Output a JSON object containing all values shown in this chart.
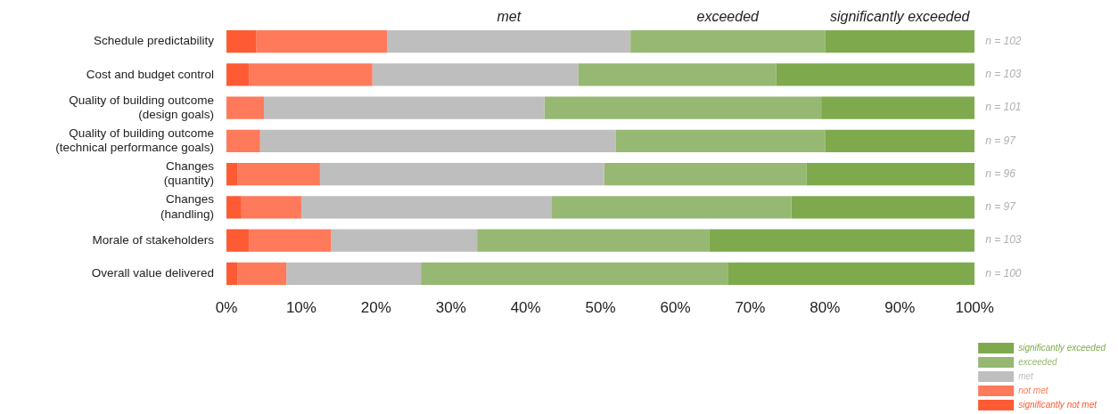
{
  "chart_data": {
    "type": "bar",
    "orientation": "horizontal",
    "stacked": true,
    "categories": [
      "Schedule predictability",
      "Cost and budget control",
      "Quality of building outcome (design goals)",
      "Quality of building outcome (technical performance goals)",
      "Changes (quantity)",
      "Changes (handling)",
      "Morale of stakeholders",
      "Overall value delivered"
    ],
    "series": [
      {
        "name": "significantly not met",
        "color": "#fe5a33",
        "values": [
          4,
          3,
          0,
          0,
          1.5,
          2,
          3,
          1.5
        ]
      },
      {
        "name": "not met",
        "color": "#fe7a5a",
        "values": [
          17.5,
          16.5,
          5,
          4.5,
          11,
          8,
          11,
          6.5
        ]
      },
      {
        "name": "met",
        "color": "#bebebe",
        "values": [
          32.5,
          27.5,
          37.5,
          47.5,
          38,
          33.5,
          19.5,
          18
        ]
      },
      {
        "name": "exceeded",
        "color": "#96b872",
        "values": [
          26,
          26.5,
          37,
          28,
          27,
          32,
          31,
          41
        ]
      },
      {
        "name": "significantly exceeded",
        "color": "#7eaa4d",
        "values": [
          20,
          26.5,
          20.5,
          20,
          22.5,
          24.5,
          35.5,
          33
        ]
      }
    ],
    "xlim": [
      0,
      100
    ],
    "xticks": [
      {
        "value": 0,
        "label": "0%"
      },
      {
        "value": 10,
        "label": "10%"
      },
      {
        "value": 20,
        "label": "20%"
      },
      {
        "value": 30,
        "label": "30%"
      },
      {
        "value": 40,
        "label": "40%"
      },
      {
        "value": 50,
        "label": "50%"
      },
      {
        "value": 60,
        "label": "60%"
      },
      {
        "value": 70,
        "label": "70%"
      },
      {
        "value": 80,
        "label": "80%"
      },
      {
        "value": 90,
        "label": "90%"
      },
      {
        "value": 100,
        "label": "100%"
      }
    ],
    "grid": false,
    "legend": "bottom right",
    "annotations": [
      "met",
      "exceeded",
      "significantly exceeded",
      "n = 102",
      "n = 103",
      "n = 101",
      "n = 97",
      "n = 96",
      "n = 97",
      "n = 103",
      "n = 100"
    ]
  }
}
